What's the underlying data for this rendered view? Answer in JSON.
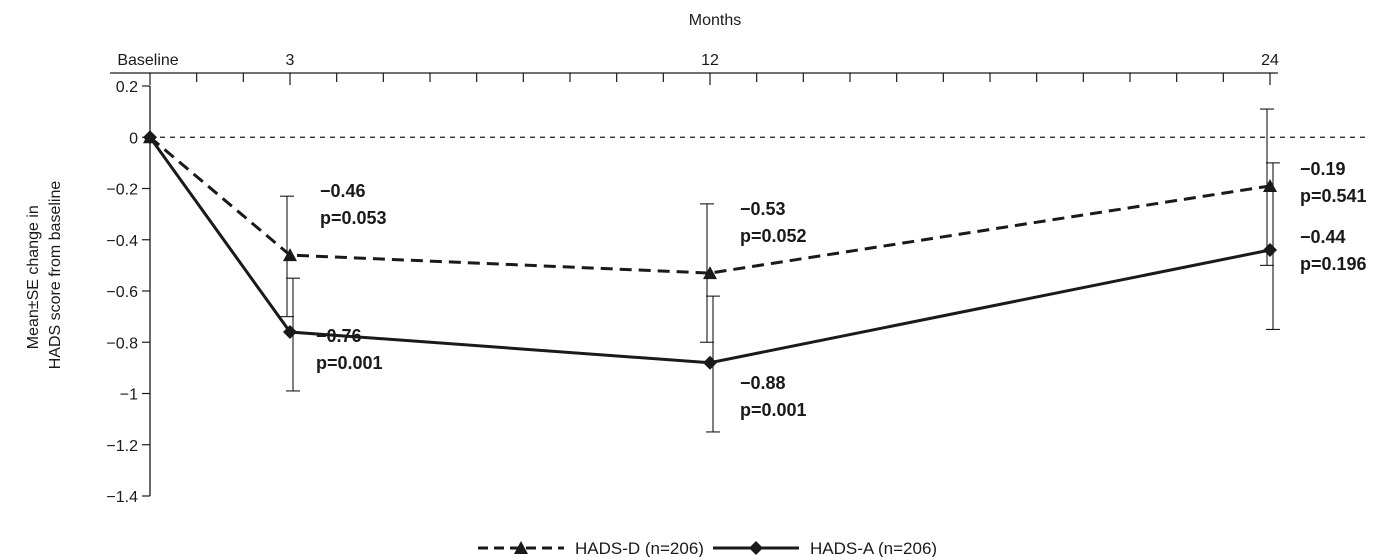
{
  "chart_data": {
    "type": "line",
    "title": "",
    "xlabel": "Months",
    "ylabel_lines": [
      "Mean±SE change in",
      "HADS score from baseline"
    ],
    "x_ticks": [
      {
        "month": 0,
        "label": "Baseline"
      },
      {
        "month": 3,
        "label": "3"
      },
      {
        "month": 12,
        "label": "12"
      },
      {
        "month": 24,
        "label": "24"
      }
    ],
    "xlim": [
      0,
      24
    ],
    "ylim": [
      -1.4,
      0.2
    ],
    "y_ticks": [
      0.2,
      0,
      -0.2,
      -0.4,
      -0.6,
      -0.8,
      -1,
      -1.2,
      -1.4
    ],
    "y_tick_labels": [
      "0.2",
      "0",
      "−0.2",
      "−0.4",
      "−0.6",
      "−0.8",
      "−1",
      "−1.2",
      "−1.4"
    ],
    "reference_line": 0,
    "legend_position": "bottom-center",
    "series": [
      {
        "name": "HADS-D (n=206)",
        "line_style": "dashed",
        "marker": "triangle",
        "color": "#1a1a1a",
        "x": [
          0,
          3,
          12,
          24
        ],
        "values": [
          0,
          -0.46,
          -0.53,
          -0.19
        ],
        "se_low": [
          0,
          -0.7,
          -0.8,
          -0.5
        ],
        "se_high": [
          0,
          -0.23,
          -0.26,
          0.11
        ],
        "annotations": [
          null,
          {
            "value": "−0.46",
            "p": "p=0.053"
          },
          {
            "value": "−0.53",
            "p": "p=0.052"
          },
          {
            "value": "−0.19",
            "p": "p=0.541"
          }
        ]
      },
      {
        "name": "HADS-A (n=206)",
        "line_style": "solid",
        "marker": "diamond",
        "color": "#1a1a1a",
        "x": [
          0,
          3,
          12,
          24
        ],
        "values": [
          0,
          -0.76,
          -0.88,
          -0.44
        ],
        "se_low": [
          0,
          -0.99,
          -1.15,
          -0.75
        ],
        "se_high": [
          0,
          -0.55,
          -0.62,
          -0.1
        ],
        "annotations": [
          null,
          {
            "value": "−0.76",
            "p": "p=0.001"
          },
          {
            "value": "−0.88",
            "p": "p=0.001"
          },
          {
            "value": "−0.44",
            "p": "p=0.196"
          }
        ]
      }
    ]
  }
}
